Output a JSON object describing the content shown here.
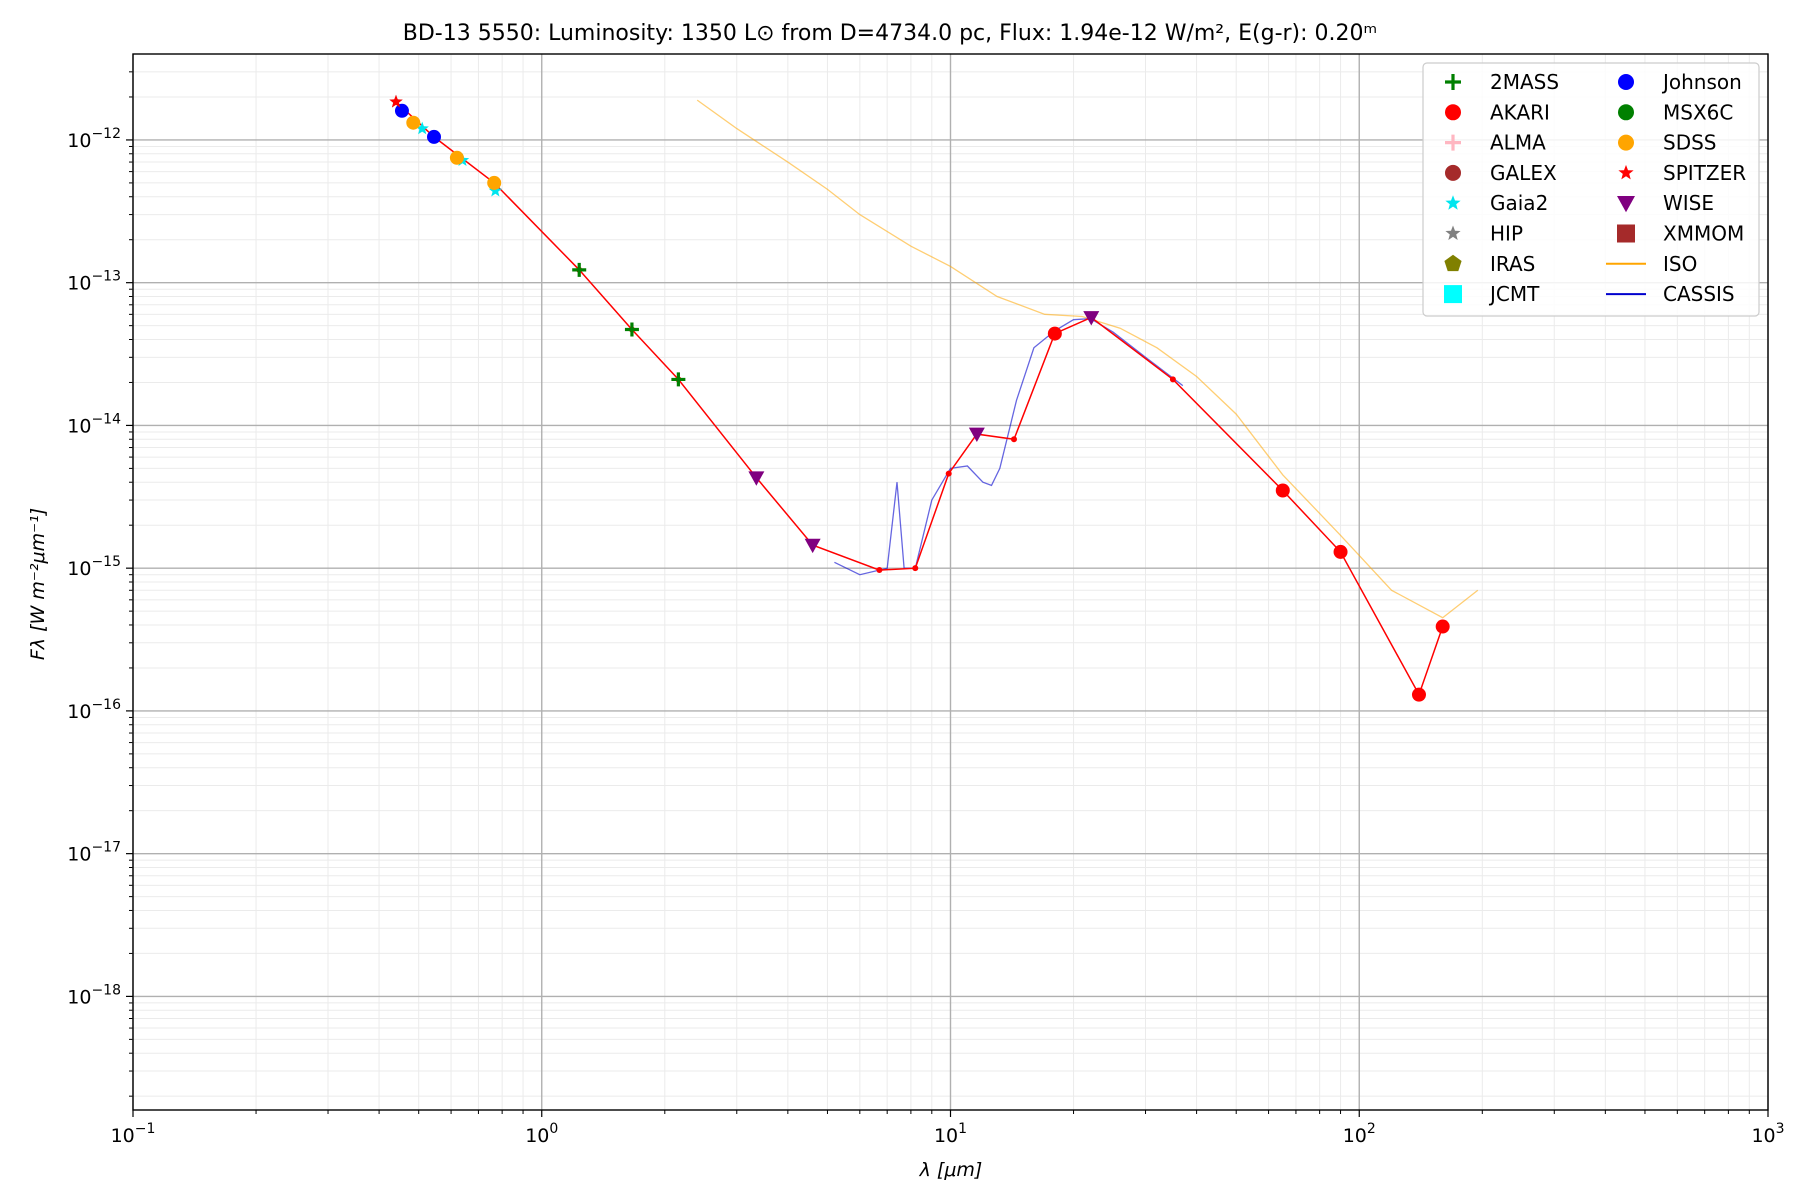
{
  "chart_data": {
    "type": "scatter",
    "title": "BD-13 5550:  Luminosity: 1350 L⊙ from D=4734.0 pc, Flux: 1.94e-12 W/m², E(g-r): 0.20ᵐ",
    "xlabel": "λ [μm]",
    "ylabel": "Fλ [W m⁻²μm⁻¹]",
    "xscale": "log",
    "yscale": "log",
    "xlim": [
      0.1,
      1000
    ],
    "ylim": [
      1.6e-19,
      4e-12
    ],
    "grid": true,
    "legend_position": "top-right",
    "xticks": [
      {
        "value": 0.1,
        "base": "10",
        "exp": "−1"
      },
      {
        "value": 1,
        "base": "10",
        "exp": "0"
      },
      {
        "value": 10,
        "base": "10",
        "exp": "1"
      },
      {
        "value": 100,
        "base": "10",
        "exp": "2"
      },
      {
        "value": 1000,
        "base": "10",
        "exp": "3"
      }
    ],
    "yticks": [
      {
        "value": 1e-18,
        "base": "10",
        "exp": "−18"
      },
      {
        "value": 1e-17,
        "base": "10",
        "exp": "−17"
      },
      {
        "value": 1e-16,
        "base": "10",
        "exp": "−16"
      },
      {
        "value": 1e-15,
        "base": "10",
        "exp": "−15"
      },
      {
        "value": 1e-14,
        "base": "10",
        "exp": "−14"
      },
      {
        "value": 1e-13,
        "base": "10",
        "exp": "−13"
      },
      {
        "value": 1e-12,
        "base": "10",
        "exp": "−12"
      }
    ],
    "sed_line": {
      "color": "#ff0000",
      "points": [
        [
          0.44,
          1.85e-12
        ],
        [
          0.545,
          1.05e-12
        ],
        [
          0.765,
          5e-13
        ],
        [
          1.235,
          1.23e-13
        ],
        [
          1.662,
          4.7e-14
        ],
        [
          2.159,
          2.1e-14
        ],
        [
          3.35,
          4.3e-15
        ],
        [
          4.6,
          1.45e-15
        ],
        [
          6.7,
          9.7e-16
        ],
        [
          8.2,
          1e-15
        ],
        [
          9.9,
          4.6e-15
        ],
        [
          11.6,
          8.7e-15
        ],
        [
          14.3,
          8e-15
        ],
        [
          18.0,
          4.4e-14
        ],
        [
          22.1,
          5.7e-14
        ],
        [
          35.0,
          2.1e-14
        ],
        [
          65.0,
          3.5e-15
        ],
        [
          90.0,
          1.3e-15
        ],
        [
          140.0,
          1.3e-16
        ],
        [
          160.0,
          3.9e-16
        ]
      ]
    },
    "series": [
      {
        "name": "2MASS",
        "marker": "plus",
        "color": "#008000",
        "points": [
          [
            1.235,
            1.23e-13
          ],
          [
            1.662,
            4.7e-14
          ],
          [
            2.159,
            2.1e-14
          ]
        ]
      },
      {
        "name": "AKARI",
        "marker": "circle",
        "color": "#ff0000",
        "points": [
          [
            18.0,
            4.4e-14
          ],
          [
            65.0,
            3.5e-15
          ],
          [
            90.0,
            1.3e-15
          ],
          [
            140.0,
            1.3e-16
          ],
          [
            160.0,
            3.9e-16
          ]
        ]
      },
      {
        "name": "ALMA",
        "marker": "plus",
        "color": "#ffb6c1",
        "points": []
      },
      {
        "name": "GALEX",
        "marker": "circle",
        "color": "#a52a2a",
        "points": []
      },
      {
        "name": "Gaia2",
        "marker": "star",
        "color": "#00e5ee",
        "points": [
          [
            0.51,
            1.2e-12
          ],
          [
            0.64,
            7.2e-13
          ],
          [
            0.77,
            4.4e-13
          ]
        ]
      },
      {
        "name": "HIP",
        "marker": "star",
        "color": "#808080",
        "points": [
          [
            0.44,
            1.85e-12
          ]
        ]
      },
      {
        "name": "IRAS",
        "marker": "pentagon",
        "color": "#808000",
        "points": []
      },
      {
        "name": "JCMT",
        "marker": "square",
        "color": "#00ffff",
        "points": []
      },
      {
        "name": "Johnson",
        "marker": "circle",
        "color": "#0000ff",
        "points": [
          [
            0.455,
            1.6e-12
          ],
          [
            0.545,
            1.05e-12
          ]
        ]
      },
      {
        "name": "MSX6C",
        "marker": "circle",
        "color": "#008000",
        "points": []
      },
      {
        "name": "SDSS",
        "marker": "circle",
        "color": "#ffa500",
        "points": [
          [
            0.485,
            1.32e-12
          ],
          [
            0.62,
            7.5e-13
          ],
          [
            0.765,
            5e-13
          ]
        ]
      },
      {
        "name": "SPITZER",
        "marker": "star",
        "color": "#ff0000",
        "points": [
          [
            0.44,
            1.85e-12
          ]
        ]
      },
      {
        "name": "WISE",
        "marker": "triangle-down",
        "color": "#800080",
        "points": [
          [
            3.35,
            4.3e-15
          ],
          [
            4.6,
            1.45e-15
          ],
          [
            11.6,
            8.7e-15
          ],
          [
            22.1,
            5.7e-14
          ]
        ]
      },
      {
        "name": "XMMOM",
        "marker": "square",
        "color": "#a52a2a",
        "points": []
      },
      {
        "name": "ISO",
        "marker": "line",
        "color": "#ffa500",
        "points": [
          [
            2.4,
            1.9e-12
          ],
          [
            3.0,
            1.2e-12
          ],
          [
            4.0,
            7e-13
          ],
          [
            5.0,
            4.5e-13
          ],
          [
            6.0,
            3e-13
          ],
          [
            8.0,
            1.8e-13
          ],
          [
            10.0,
            1.3e-13
          ],
          [
            13.0,
            8e-14
          ],
          [
            17.0,
            6e-14
          ],
          [
            21.0,
            5.8e-14
          ],
          [
            26.0,
            4.8e-14
          ],
          [
            32.0,
            3.5e-14
          ],
          [
            40.0,
            2.2e-14
          ],
          [
            50.0,
            1.2e-14
          ],
          [
            65.0,
            4.5e-15
          ],
          [
            90.0,
            1.7e-15
          ],
          [
            120.0,
            7e-16
          ],
          [
            160.0,
            4.5e-16
          ],
          [
            195.0,
            7e-16
          ]
        ]
      },
      {
        "name": "CASSIS",
        "marker": "line",
        "color": "#0000cd",
        "points": [
          [
            5.2,
            1.1e-15
          ],
          [
            6.0,
            9e-16
          ],
          [
            7.0,
            1e-15
          ],
          [
            7.4,
            4e-15
          ],
          [
            7.7,
            1e-15
          ],
          [
            8.2,
            1e-15
          ],
          [
            9.0,
            3e-15
          ],
          [
            10.0,
            5e-15
          ],
          [
            11.0,
            5.2e-15
          ],
          [
            12.0,
            4e-15
          ],
          [
            12.6,
            3.8e-15
          ],
          [
            13.2,
            5e-15
          ],
          [
            14.5,
            1.5e-14
          ],
          [
            16.0,
            3.5e-14
          ],
          [
            18.0,
            4.6e-14
          ],
          [
            20.0,
            5.5e-14
          ],
          [
            22.0,
            5.6e-14
          ],
          [
            25.0,
            4.5e-14
          ],
          [
            30.0,
            3e-14
          ],
          [
            37.0,
            1.9e-14
          ]
        ]
      }
    ]
  }
}
